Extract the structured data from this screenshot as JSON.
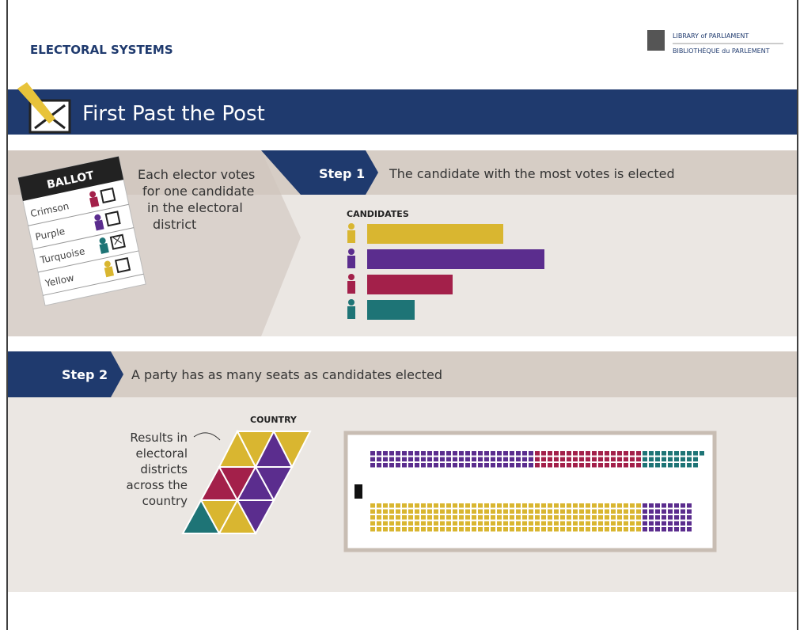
{
  "header": {
    "title": "ELECTORAL SYSTEMS",
    "logo_line1": "LIBRARY of PARLIAMENT",
    "logo_line2": "BIBLIOTHÈQUE du PARLEMENT"
  },
  "banner": {
    "title": "First Past the Post"
  },
  "ballot": {
    "title": "BALLOT",
    "options": [
      "Crimson",
      "Purple",
      "Turquoise",
      "Yellow"
    ]
  },
  "intro": {
    "lines": [
      "Each elector votes",
      "for one candidate",
      "in the electoral",
      "district"
    ]
  },
  "step1": {
    "label": "Step 1",
    "text": "The candidate with the most votes is elected",
    "chart_label": "CANDIDATES",
    "votes": [
      {
        "color": "#d9b630",
        "value": 172
      },
      {
        "color": "#5b2d8e",
        "value": 224
      },
      {
        "color": "#a3204a",
        "value": 108
      },
      {
        "color": "#1e7476",
        "value": 60
      }
    ]
  },
  "step2": {
    "label": "Step 2",
    "text": "A party has as many seats as candidates elected",
    "map_label": "COUNTRY",
    "note": [
      "Results in",
      "electoral",
      "districts",
      "across the",
      "country"
    ],
    "seats_top": [
      {
        "color": "#5b2d8e",
        "count": 78
      },
      {
        "color": "#a3204a",
        "count": 51
      },
      {
        "color": "#1e7476",
        "count": 28
      }
    ],
    "seats_bottom": [
      {
        "color": "#d9b630",
        "count": 215
      },
      {
        "color": "#5b2d8e",
        "count": 40
      }
    ]
  }
}
